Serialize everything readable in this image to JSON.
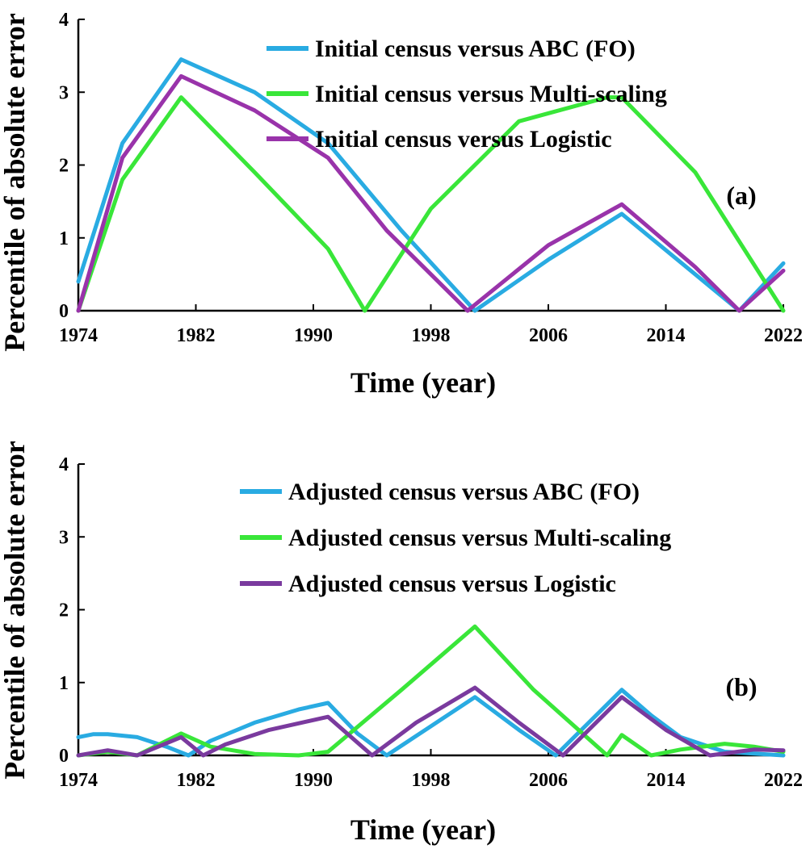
{
  "chart_data": [
    {
      "type": "line",
      "panel_label": "(a)",
      "xlabel": "Time (year)",
      "ylabel": "Percentile of absolute error",
      "xlim": [
        1974,
        2022
      ],
      "ylim": [
        0,
        4
      ],
      "xticks": [
        1974,
        1982,
        1990,
        1998,
        2006,
        2014,
        2022
      ],
      "yticks": [
        0,
        1,
        2,
        3,
        4
      ],
      "legend_position": "top-right",
      "series": [
        {
          "name": "Initial census versus ABC (FO)",
          "color": "#29abe2",
          "x": [
            1974,
            1977,
            1981,
            1986,
            1991,
            1996,
            2001,
            2006,
            2011,
            2016,
            2019,
            2022
          ],
          "y": [
            0.4,
            2.3,
            3.45,
            3.0,
            2.3,
            1.1,
            0.0,
            0.7,
            1.33,
            0.5,
            0.0,
            0.65
          ]
        },
        {
          "name": "Initial census versus Multi-scaling",
          "color": "#39e639",
          "x": [
            1974,
            1977,
            1981,
            1986,
            1991,
            1993.5,
            1998,
            2004,
            2010,
            2011,
            2016,
            2022
          ],
          "y": [
            0.0,
            1.8,
            2.93,
            1.9,
            0.85,
            0.0,
            1.4,
            2.6,
            2.93,
            2.93,
            1.9,
            0.0
          ]
        },
        {
          "name": "Initial census versus Logistic",
          "color": "#9933aa",
          "x": [
            1974,
            1977,
            1981,
            1986,
            1991,
            1995,
            2000.5,
            2006,
            2011,
            2016,
            2019,
            2022
          ],
          "y": [
            0.0,
            2.1,
            3.22,
            2.75,
            2.1,
            1.1,
            0.0,
            0.9,
            1.46,
            0.6,
            0.0,
            0.55
          ]
        }
      ]
    },
    {
      "type": "line",
      "panel_label": "(b)",
      "xlabel": "Time (year)",
      "ylabel": "Percentile of absolute error",
      "xlim": [
        1974,
        2022
      ],
      "ylim": [
        0,
        4
      ],
      "xticks": [
        1974,
        1982,
        1990,
        1998,
        2006,
        2014,
        2022
      ],
      "yticks": [
        0,
        1,
        2,
        3,
        4
      ],
      "legend_position": "top-right",
      "series": [
        {
          "name": "Adjusted census versus ABC (FO)",
          "color": "#29abe2",
          "x": [
            1974,
            1975,
            1976,
            1978,
            1980,
            1981.5,
            1983,
            1986,
            1989,
            1991,
            1993,
            1995,
            1998,
            2001,
            2004,
            2006.5,
            2009,
            2011,
            2013,
            2015,
            2018,
            2022
          ],
          "y": [
            0.25,
            0.29,
            0.29,
            0.25,
            0.12,
            0.0,
            0.2,
            0.45,
            0.63,
            0.72,
            0.3,
            0.0,
            0.4,
            0.8,
            0.35,
            0.0,
            0.5,
            0.9,
            0.55,
            0.25,
            0.05,
            0.0
          ],
          "smooth": true
        },
        {
          "name": "Adjusted census versus Multi-scaling",
          "color": "#39e639",
          "x": [
            1974,
            1976,
            1978,
            1981,
            1983,
            1986,
            1989,
            1991,
            1996,
            2001,
            2005,
            2010,
            2011,
            2013,
            2015,
            2018,
            2020,
            2022
          ],
          "y": [
            0.0,
            0.05,
            0.0,
            0.3,
            0.12,
            0.02,
            0.0,
            0.05,
            0.9,
            1.77,
            0.9,
            0.0,
            0.28,
            0.0,
            0.08,
            0.16,
            0.12,
            0.05
          ],
          "smooth": false
        },
        {
          "name": "Adjusted census versus Logistic",
          "color": "#7a3a9e",
          "x": [
            1974,
            1976,
            1978,
            1981,
            1982.5,
            1984,
            1987,
            1991,
            1994,
            1997,
            2001,
            2004,
            2007,
            2011,
            2014,
            2017,
            2020,
            2022
          ],
          "y": [
            0.0,
            0.07,
            0.0,
            0.25,
            0.0,
            0.15,
            0.35,
            0.53,
            0.0,
            0.45,
            0.93,
            0.45,
            0.0,
            0.8,
            0.35,
            0.0,
            0.08,
            0.07
          ],
          "smooth": false
        }
      ]
    }
  ]
}
